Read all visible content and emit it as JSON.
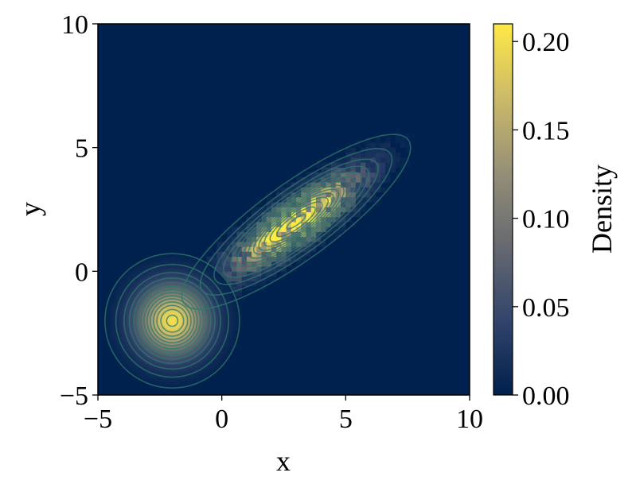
{
  "chart_data": {
    "type": "heatmap",
    "title": "",
    "xlabel": "x",
    "ylabel": "y",
    "xlim": [
      -5,
      10
    ],
    "ylim": [
      -5,
      10
    ],
    "x_ticks": [
      "−5",
      "0",
      "5",
      "10"
    ],
    "y_ticks": [
      "−5",
      "0",
      "5",
      "10"
    ],
    "x_tick_values": [
      -5,
      0,
      5,
      10
    ],
    "y_tick_values": [
      -5,
      0,
      5,
      10
    ],
    "grid": false,
    "colormap": "cividis",
    "colormap_colors": [
      "#00204d",
      "#31446b",
      "#666970",
      "#958f78",
      "#cbba69",
      "#ffe945"
    ],
    "colorbar": {
      "label": "Density",
      "min": 0.0,
      "max": 0.21,
      "ticks": [
        "0.00",
        "0.05",
        "0.10",
        "0.15",
        "0.20"
      ],
      "tick_values": [
        0.0,
        0.05,
        0.1,
        0.15,
        0.2
      ]
    },
    "contour_color": "#2e7a68",
    "components": [
      {
        "mean": [
          -2,
          -2
        ],
        "std": [
          1.0,
          1.0
        ],
        "corr": 0.0,
        "peak_density": 0.2
      },
      {
        "mean": [
          3,
          2
        ],
        "std": [
          1.7,
          1.3
        ],
        "corr": 0.85,
        "peak_density": 0.2
      }
    ],
    "contour_levels": [
      0.005,
      0.015,
      0.03,
      0.045,
      0.06,
      0.075,
      0.09,
      0.105,
      0.12,
      0.135,
      0.15,
      0.165,
      0.18,
      0.195
    ]
  }
}
